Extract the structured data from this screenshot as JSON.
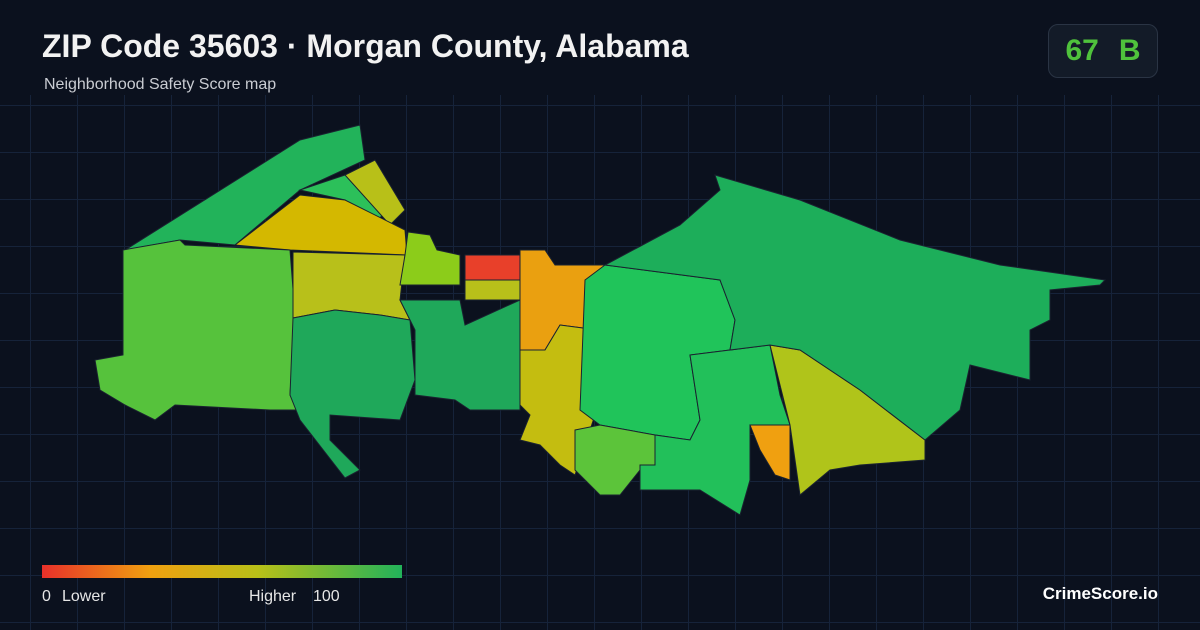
{
  "header": {
    "title": "ZIP Code 35603 · Morgan County, Alabama",
    "subtitle": "Neighborhood Safety Score map"
  },
  "score": {
    "value": 67,
    "grade": "B"
  },
  "legend": {
    "min": 0,
    "min_label": "Lower",
    "max_label": "Higher",
    "max": 100
  },
  "brand": "CrimeScore.io"
}
